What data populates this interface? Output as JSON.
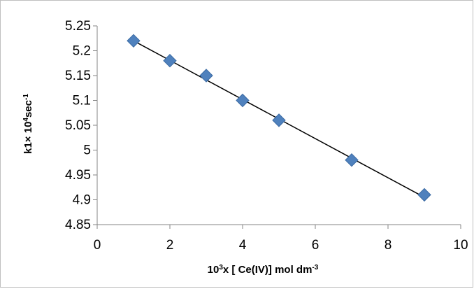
{
  "chart_data": {
    "type": "scatter",
    "title": "",
    "xlabel": {
      "base": "10",
      "sup": "3",
      "rest": "x [ Ce(IV)] mol dm",
      "sup2": "-3"
    },
    "ylabel": {
      "prefix": "k1× 10",
      "sup": "4",
      "mid": "sec",
      "sup2": "-1"
    },
    "xlim": [
      0,
      10
    ],
    "ylim": [
      4.85,
      5.25
    ],
    "x_ticks": [
      "0",
      "2",
      "4",
      "6",
      "8",
      "10"
    ],
    "y_ticks": [
      "4.85",
      "4.9",
      "4.95",
      "5",
      "5.05",
      "5.1",
      "5.15",
      "5.2",
      "5.25"
    ],
    "grid": false,
    "legend": "none",
    "series": [
      {
        "marker": "diamond",
        "color": "#4f81bd",
        "x": [
          1,
          2,
          3,
          4,
          5,
          7,
          9
        ],
        "y": [
          5.22,
          5.18,
          5.15,
          5.1,
          5.06,
          4.98,
          4.91
        ]
      }
    ],
    "trendline": {
      "type": "linear",
      "color": "#000000",
      "x": [
        1,
        9
      ],
      "y": [
        5.22,
        4.905
      ]
    }
  }
}
